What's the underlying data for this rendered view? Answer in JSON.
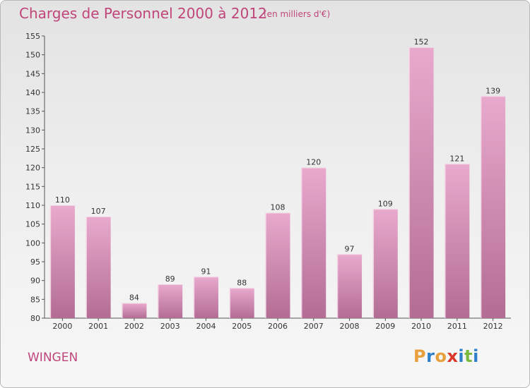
{
  "title": "Charges de Personnel 2000 à 2012",
  "subtitle": "(en milliers d'€)",
  "commune": "WINGEN",
  "logo": {
    "letters": [
      "P",
      "r",
      "o",
      "x",
      "i",
      "t",
      "i"
    ],
    "colors": [
      "#e8a03c",
      "#2d7fc9",
      "#e8a03c",
      "#d9372a",
      "#2d7fc9",
      "#79b83c",
      "#2d7fc9"
    ]
  },
  "colors": {
    "bar_top": "#e9a9cd",
    "bar_bottom": "#b36d95",
    "bar_edge": "#f6dcea",
    "title": "#c0457a"
  },
  "chart_data": {
    "type": "bar",
    "categories": [
      "2000",
      "2001",
      "2002",
      "2003",
      "2004",
      "2005",
      "2006",
      "2007",
      "2008",
      "2009",
      "2010",
      "2011",
      "2012"
    ],
    "values": [
      110,
      107,
      84,
      89,
      91,
      88,
      108,
      120,
      97,
      109,
      152,
      121,
      139
    ],
    "ylim": [
      80,
      155
    ],
    "yticks": [
      80,
      85,
      90,
      95,
      100,
      105,
      110,
      115,
      120,
      125,
      130,
      135,
      140,
      145,
      150,
      155
    ],
    "grid": false,
    "legend": "none"
  }
}
